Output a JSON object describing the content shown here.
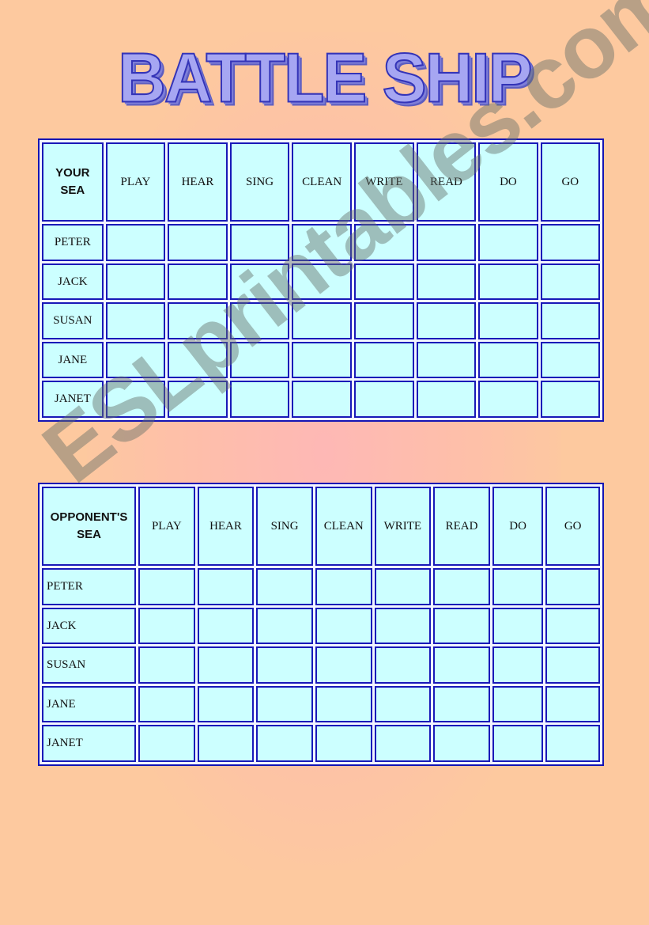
{
  "title": "BATTLE SHIP",
  "watermark": "ESLprintables.com",
  "columns": [
    "PLAY",
    "HEAR",
    "SING",
    "CLEAN",
    "WRITE",
    "READ",
    "DO",
    "GO"
  ],
  "rows": [
    "PETER",
    "JACK",
    "SUSAN",
    "JANE",
    "JANET"
  ],
  "grids": [
    {
      "corner_line1": "YOUR",
      "corner_line2": "SEA"
    },
    {
      "corner_line1": "OPPONENT'S",
      "corner_line2": "SEA"
    }
  ],
  "colors": {
    "background": "#fdc99f",
    "cell": "#ccffff",
    "border": "#1414b4",
    "title": "#a6a6f2"
  }
}
